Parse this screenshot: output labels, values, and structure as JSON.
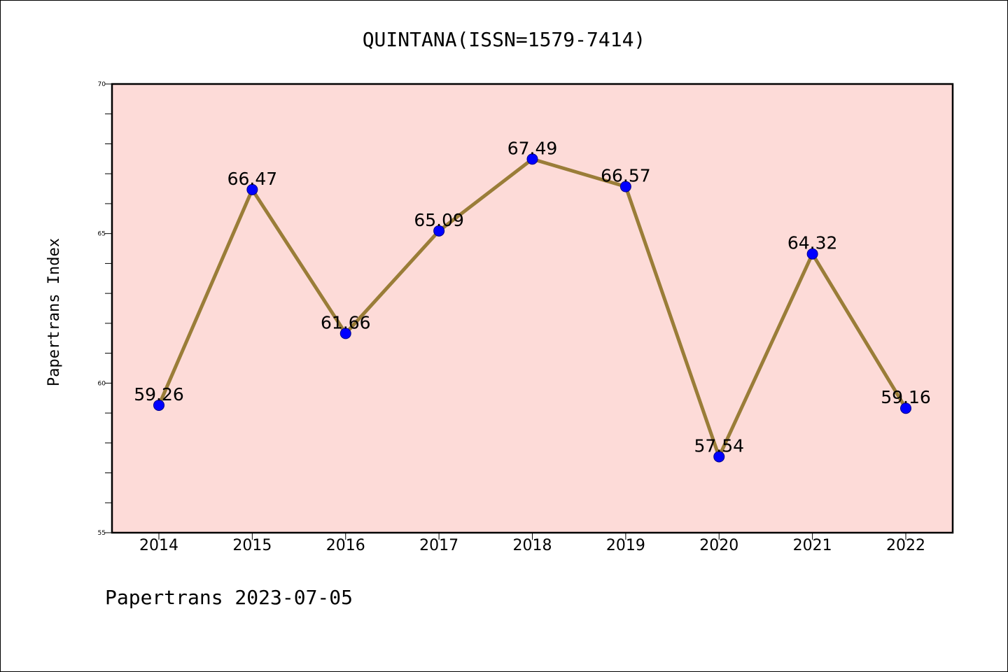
{
  "chart_data": {
    "type": "line",
    "title": "QUINTANA(ISSN=1579-7414)",
    "xlabel": "",
    "ylabel": "Papertrans Index",
    "categories": [
      "2014",
      "2015",
      "2016",
      "2017",
      "2018",
      "2019",
      "2020",
      "2021",
      "2022"
    ],
    "values": [
      59.26,
      66.47,
      61.66,
      65.09,
      67.49,
      66.57,
      57.54,
      64.32,
      59.16
    ],
    "value_labels": [
      "59.26",
      "66.47",
      "61.66",
      "65.09",
      "67.49",
      "66.57",
      "57.54",
      "64.32",
      "59.16"
    ],
    "ylim": [
      55,
      70
    ],
    "yticks": [
      55,
      60,
      65,
      70
    ],
    "yticks_minor": [
      56,
      57,
      58,
      59,
      61,
      62,
      63,
      64,
      66,
      67,
      68,
      69
    ],
    "grid": false,
    "legend": "none",
    "colors": {
      "plot_background": "#fddbd8",
      "line": "#9a7d38",
      "marker": "#0000ff",
      "marker_edge": "#00008b"
    }
  },
  "footer": {
    "text": "Papertrans 2023-07-05"
  }
}
